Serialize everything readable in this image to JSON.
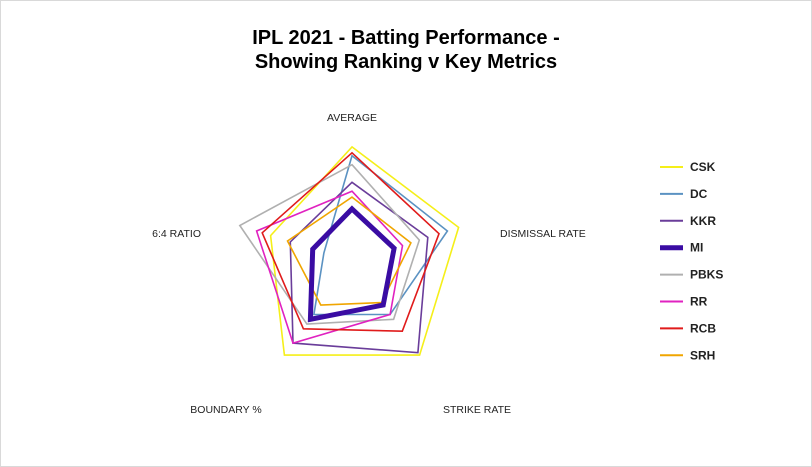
{
  "chart_data": {
    "type": "radar",
    "title_line1": "IPL 2021 - Batting Performance -",
    "title_line2": "Showing Ranking v Key Metrics",
    "axes": [
      "AVERAGE",
      "DISMISSAL RATE",
      "STRIKE RATE",
      "BOUNDARY %",
      "6:4 RATIO"
    ],
    "range": [
      0,
      8
    ],
    "legend_position": "right",
    "series": [
      {
        "name": "CSK",
        "color": "#f5ef19",
        "values": [
          7.8,
          7.6,
          7.8,
          7.8,
          5.8
        ]
      },
      {
        "name": "DC",
        "color": "#5b92c2",
        "values": [
          7.2,
          6.8,
          4.4,
          4.4,
          2.0
        ]
      },
      {
        "name": "KKR",
        "color": "#6a3d9a",
        "values": [
          5.4,
          5.4,
          7.6,
          6.8,
          4.4
        ]
      },
      {
        "name": "MI",
        "color": "#3a0ca3",
        "values": [
          3.6,
          3.0,
          3.6,
          4.8,
          2.8
        ]
      },
      {
        "name": "PBKS",
        "color": "#b0b0b0",
        "values": [
          6.6,
          4.8,
          4.8,
          5.2,
          8.0
        ]
      },
      {
        "name": "RR",
        "color": "#e022c0",
        "values": [
          4.8,
          3.6,
          4.4,
          6.8,
          6.8
        ]
      },
      {
        "name": "RCB",
        "color": "#e01b1b",
        "values": [
          7.4,
          6.2,
          5.8,
          5.6,
          6.4
        ]
      },
      {
        "name": "SRH",
        "color": "#f0a500",
        "values": [
          4.4,
          4.2,
          3.4,
          3.6,
          4.6
        ]
      }
    ],
    "highlight_series": "MI"
  }
}
